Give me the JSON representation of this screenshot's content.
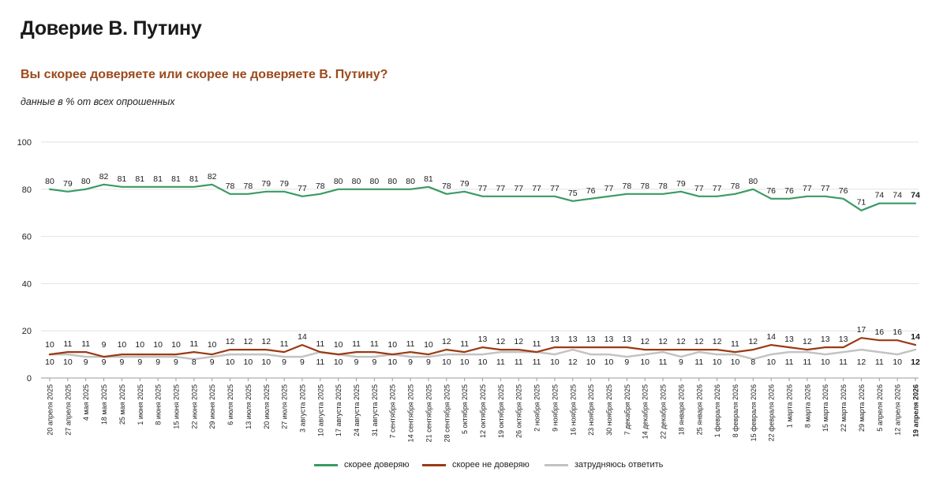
{
  "page": {
    "title": "Доверие В. Путину",
    "subtitle": "Вы скорее доверяете или скорее не доверяете В. Путину?",
    "note": "данные в % от всех опрошенных"
  },
  "colors": {
    "trust": "#3a9a64",
    "distrust": "#9b3a14",
    "undecided": "#c3c3c3",
    "subtitle": "#9b4a1c"
  },
  "chart_data": {
    "type": "line",
    "title": "Доверие В. Путину",
    "ylim": [
      0,
      100
    ],
    "yticks": [
      0,
      20,
      40,
      60,
      80,
      100
    ],
    "grid": true,
    "legend_position": "bottom-center",
    "categories": [
      "20 апреля 2025",
      "27 апреля 2025",
      "4 мая 2025",
      "18 мая 2025",
      "25 мая 2025",
      "1 июня 2025",
      "8 июня 2025",
      "15 июня 2025",
      "22 июня 2025",
      "29 июня 2025",
      "6 июля 2025",
      "13 июля 2025",
      "20 июля 2025",
      "27 июля 2025",
      "3 августа 2025",
      "10 августа 2025",
      "17 августа 2025",
      "24 августа 2025",
      "31 августа 2025",
      "7 сентября 2025",
      "14 сентября 2025",
      "21 сентября 2025",
      "28 сентября 2025",
      "5 октября 2025",
      "12 октября 2025",
      "19 октября 2025",
      "26 октября 2025",
      "2 ноября 2025",
      "9 ноября 2025",
      "16 ноября 2025",
      "23 ноября 2025",
      "30 ноября 2025",
      "7 декабря 2025",
      "14 декабря 2025",
      "22 декабря 2025",
      "18 января 2026",
      "25 января 2026",
      "1 февраля 2026",
      "8 февраля 2026",
      "15 февраля 2026",
      "22 февраля 2026",
      "1 марта 2026",
      "8 марта 2026",
      "15 марта 2026",
      "22 марта 2026",
      "29 марта 2026",
      "5 апреля 2026",
      "12 апреля 2026",
      "19 апреля 2026"
    ],
    "series": [
      {
        "name": "скорее доверяю",
        "color_key": "trust",
        "values": [
          80,
          79,
          80,
          82,
          81,
          81,
          81,
          81,
          81,
          82,
          78,
          78,
          79,
          79,
          77,
          78,
          80,
          80,
          80,
          80,
          80,
          81,
          78,
          79,
          77,
          77,
          77,
          77,
          77,
          75,
          76,
          77,
          78,
          78,
          78,
          79,
          77,
          77,
          78,
          80,
          76,
          76,
          77,
          77,
          76,
          71,
          74,
          74,
          74
        ]
      },
      {
        "name": "скорее не доверяю",
        "color_key": "distrust",
        "values": [
          10,
          11,
          11,
          9,
          10,
          10,
          10,
          10,
          11,
          10,
          12,
          12,
          12,
          11,
          14,
          11,
          10,
          11,
          11,
          10,
          11,
          10,
          12,
          11,
          13,
          12,
          12,
          11,
          13,
          13,
          13,
          13,
          13,
          12,
          12,
          12,
          12,
          12,
          11,
          12,
          14,
          13,
          12,
          13,
          13,
          17,
          16,
          16,
          14
        ]
      },
      {
        "name": "затрудняюсь ответить",
        "color_key": "undecided",
        "values": [
          10,
          10,
          9,
          9,
          9,
          9,
          9,
          9,
          8,
          9,
          10,
          10,
          10,
          9,
          9,
          11,
          10,
          9,
          9,
          10,
          9,
          9,
          10,
          10,
          10,
          11,
          11,
          11,
          10,
          12,
          10,
          10,
          9,
          10,
          11,
          9,
          11,
          10,
          10,
          8,
          10,
          11,
          11,
          10,
          11,
          12,
          11,
          10,
          12
        ]
      }
    ]
  }
}
